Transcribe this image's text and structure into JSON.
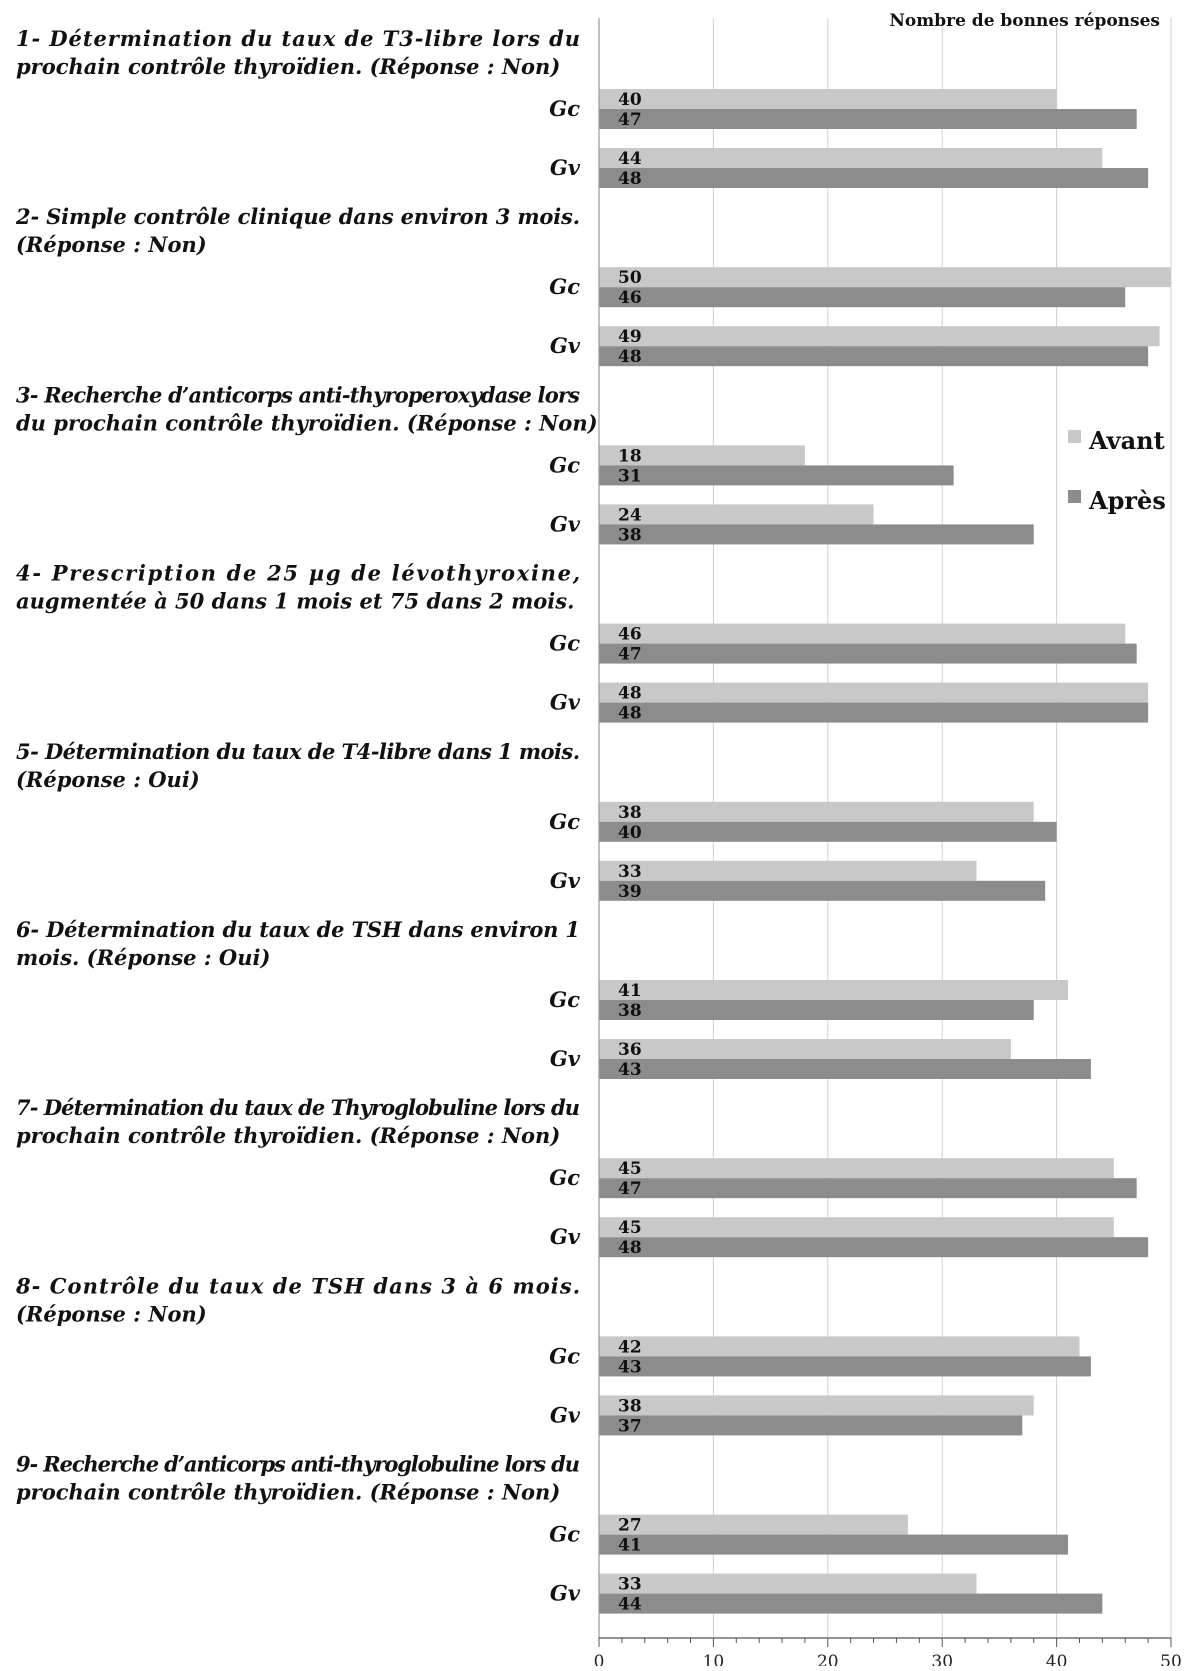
{
  "chart_data": {
    "type": "bar",
    "orientation": "horizontal",
    "title": "Nombre de bonnes réponses",
    "xlim": [
      0,
      50
    ],
    "xticks": [
      0,
      10,
      20,
      30,
      40,
      50
    ],
    "grid": true,
    "legend_position": "right",
    "colors": {
      "Avant": "#c8c8c8",
      "Après": "#8c8c8c"
    },
    "series": [
      {
        "name": "Avant"
      },
      {
        "name": "Après"
      }
    ],
    "questions": [
      {
        "lines": [
          "1- Détermination du taux de T3-libre lors du",
          "prochain contrôle thyroïdien. (Réponse : Non)"
        ],
        "groups": [
          {
            "label": "Gc",
            "avant": 40,
            "apres": 47
          },
          {
            "label": "Gv",
            "avant": 44,
            "apres": 48
          }
        ]
      },
      {
        "lines": [
          "2- Simple contrôle clinique dans environ 3 mois.",
          "(Réponse : Non)"
        ],
        "groups": [
          {
            "label": "Gc",
            "avant": 50,
            "apres": 46
          },
          {
            "label": "Gv",
            "avant": 49,
            "apres": 48
          }
        ]
      },
      {
        "lines": [
          "3- Recherche d’anticorps anti-thyroperoxydase lors",
          "du prochain contrôle thyroïdien. (Réponse : Non)"
        ],
        "groups": [
          {
            "label": "Gc",
            "avant": 18,
            "apres": 31
          },
          {
            "label": "Gv",
            "avant": 24,
            "apres": 38
          }
        ]
      },
      {
        "lines": [
          "4- Prescription de 25 µg de lévothyroxine,",
          "augmentée à 50 dans 1 mois et 75 dans 2 mois."
        ],
        "groups": [
          {
            "label": "Gc",
            "avant": 46,
            "apres": 47
          },
          {
            "label": "Gv",
            "avant": 48,
            "apres": 48
          }
        ]
      },
      {
        "lines": [
          "5- Détermination du taux de T4-libre dans 1 mois.",
          "(Réponse : Oui)"
        ],
        "groups": [
          {
            "label": "Gc",
            "avant": 38,
            "apres": 40
          },
          {
            "label": "Gv",
            "avant": 33,
            "apres": 39
          }
        ]
      },
      {
        "lines": [
          "6- Détermination du taux de TSH dans environ 1",
          "mois. (Réponse : Oui)"
        ],
        "groups": [
          {
            "label": "Gc",
            "avant": 41,
            "apres": 38
          },
          {
            "label": "Gv",
            "avant": 36,
            "apres": 43
          }
        ]
      },
      {
        "lines": [
          "7- Détermination du taux de Thyroglobuline lors du",
          "prochain contrôle thyroïdien. (Réponse : Non)"
        ],
        "groups": [
          {
            "label": "Gc",
            "avant": 45,
            "apres": 47
          },
          {
            "label": "Gv",
            "avant": 45,
            "apres": 48
          }
        ]
      },
      {
        "lines": [
          "8- Contrôle du taux de TSH dans 3 à 6 mois.",
          "(Réponse : Non)"
        ],
        "groups": [
          {
            "label": "Gc",
            "avant": 42,
            "apres": 43
          },
          {
            "label": "Gv",
            "avant": 38,
            "apres": 37
          }
        ]
      },
      {
        "lines": [
          "9- Recherche d’anticorps anti-thyroglobuline lors du",
          "prochain contrôle thyroïdien. (Réponse : Non)"
        ],
        "groups": [
          {
            "label": "Gc",
            "avant": 27,
            "apres": 41
          },
          {
            "label": "Gv",
            "avant": 33,
            "apres": 44
          }
        ]
      }
    ]
  }
}
